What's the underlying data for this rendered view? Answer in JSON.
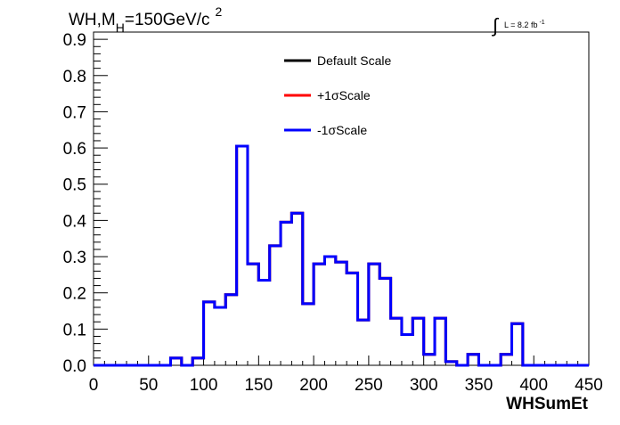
{
  "chart_data": {
    "type": "step",
    "title_main": "WH,M",
    "title_sub": "H",
    "title_rest": "=150GeV/c",
    "title_sup": "2",
    "lumi_text": "L = 8.2 fb",
    "lumi_sup": "-1",
    "xlabel": "WHSumEt",
    "ylabel": "",
    "xlim": [
      0,
      450
    ],
    "ylim": [
      0,
      0.92
    ],
    "xticks": [
      0,
      50,
      100,
      150,
      200,
      250,
      300,
      350,
      400,
      450
    ],
    "yticks": [
      "0.0",
      "0.1",
      "0.2",
      "0.3",
      "0.4",
      "0.5",
      "0.6",
      "0.7",
      "0.8",
      "0.9"
    ],
    "bin_width": 10,
    "bin_edges_start": 0,
    "legend": {
      "position": "top-center",
      "entries": [
        {
          "label": "Default Scale",
          "color": "#000000"
        },
        {
          "label": "+1σScale",
          "color": "#ff0000"
        },
        {
          "label": "-1σScale",
          "color": "#0000ff"
        }
      ]
    },
    "series": [
      {
        "name": "Default Scale",
        "color": "#000000",
        "values": [
          0,
          0,
          0,
          0,
          0,
          0,
          0,
          0.02,
          0,
          0.02,
          0.175,
          0.16,
          0.195,
          0.605,
          0.28,
          0.235,
          0.33,
          0.395,
          0.42,
          0.17,
          0.28,
          0.3,
          0.285,
          0.255,
          0.125,
          0.28,
          0.24,
          0.13,
          0.085,
          0.13,
          0.03,
          0.13,
          0.01,
          0,
          0.03,
          0,
          0,
          0.03,
          0.115,
          0,
          0,
          0,
          0,
          0,
          0
        ]
      },
      {
        "name": "+1σScale",
        "color": "#ff0000",
        "values": [
          0,
          0,
          0,
          0,
          0,
          0,
          0,
          0.02,
          0,
          0.02,
          0.175,
          0.16,
          0.195,
          0.605,
          0.28,
          0.235,
          0.33,
          0.395,
          0.42,
          0.17,
          0.28,
          0.3,
          0.285,
          0.255,
          0.125,
          0.28,
          0.24,
          0.13,
          0.085,
          0.13,
          0.03,
          0.13,
          0.01,
          0,
          0.03,
          0,
          0,
          0.03,
          0.115,
          0,
          0,
          0,
          0,
          0,
          0
        ]
      },
      {
        "name": "-1σScale",
        "color": "#0000ff",
        "values": [
          0,
          0,
          0,
          0,
          0,
          0,
          0,
          0.02,
          0,
          0.02,
          0.175,
          0.16,
          0.195,
          0.605,
          0.28,
          0.235,
          0.33,
          0.395,
          0.42,
          0.17,
          0.28,
          0.3,
          0.285,
          0.255,
          0.125,
          0.28,
          0.24,
          0.13,
          0.085,
          0.13,
          0.03,
          0.13,
          0.01,
          0,
          0.03,
          0,
          0,
          0.03,
          0.115,
          0,
          0,
          0,
          0,
          0,
          0
        ]
      }
    ]
  }
}
